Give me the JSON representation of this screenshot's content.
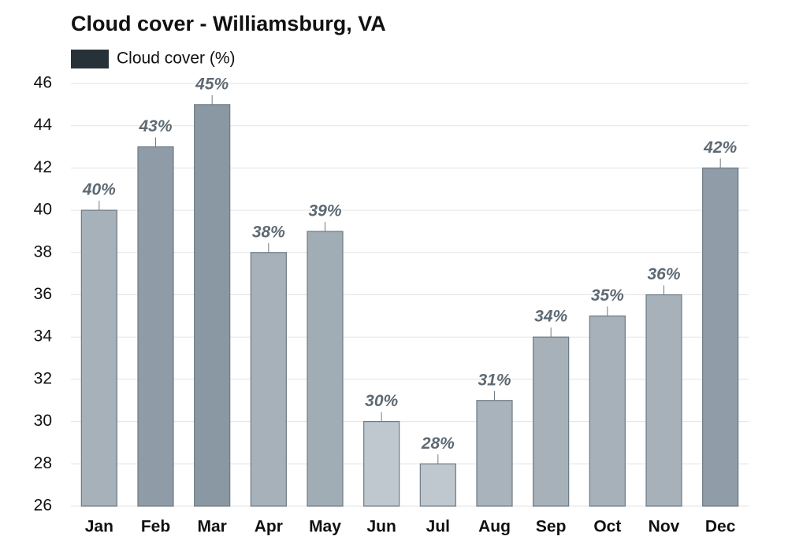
{
  "chart_data": {
    "type": "bar",
    "title": "Cloud cover - Williamsburg, VA",
    "categories": [
      "Jan",
      "Feb",
      "Mar",
      "Apr",
      "May",
      "Jun",
      "Jul",
      "Aug",
      "Sep",
      "Oct",
      "Nov",
      "Dec"
    ],
    "series": [
      {
        "name": "Cloud cover (%)",
        "color": "#263238",
        "values": [
          40,
          43,
          45,
          38,
          39,
          30,
          28,
          31,
          34,
          35,
          36,
          42
        ],
        "value_labels": [
          "40%",
          "43%",
          "45%",
          "38%",
          "39%",
          "30%",
          "28%",
          "31%",
          "34%",
          "35%",
          "36%",
          "42%"
        ],
        "bar_colors": [
          "#a6b1b9",
          "#8f9ca7",
          "#8a98a4",
          "#a6b1b9",
          "#a1adb5",
          "#bfc8ce",
          "#bfc8ce",
          "#a8b3bb",
          "#a6b1b9",
          "#a6b1b9",
          "#a6b1b9",
          "#909da8"
        ]
      }
    ],
    "ylim": [
      26,
      46
    ],
    "yticks": [
      26,
      28,
      30,
      32,
      34,
      36,
      38,
      40,
      42,
      44,
      46
    ],
    "grid": true
  }
}
